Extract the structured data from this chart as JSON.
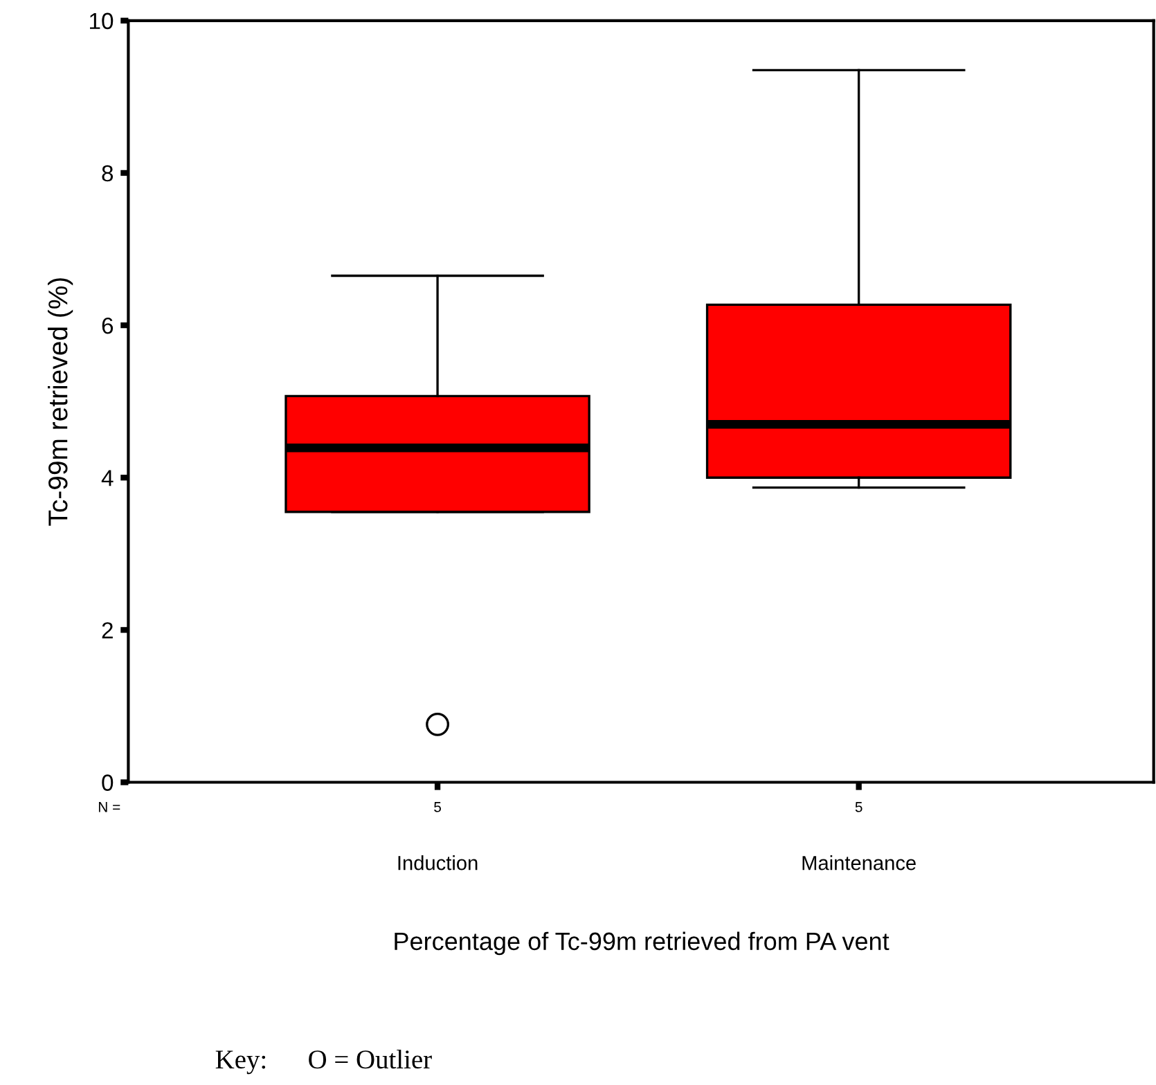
{
  "chart_data": {
    "type": "box",
    "categories": [
      "Induction",
      "Maintenance"
    ],
    "boxes": [
      {
        "low": 3.55,
        "q1": 3.55,
        "median": 4.39,
        "q3": 5.07,
        "high": 6.65,
        "outliers": [
          0.76
        ]
      },
      {
        "low": 3.87,
        "q1": 4.0,
        "median": 4.7,
        "q3": 6.27,
        "high": 9.35
      }
    ],
    "color": "#ff0000",
    "ylabel": "Tc-99m retrieved (%)",
    "xlabel": "Percentage of Tc-99m retrieved from PA vent",
    "ylim": [
      0,
      10
    ],
    "yticks": [
      0,
      2,
      4,
      6,
      8,
      10
    ],
    "grid": false,
    "legend": false,
    "annotations": [
      "N =",
      {
        "text": "5",
        "x": "Induction"
      },
      {
        "text": "5",
        "x": "Maintenance"
      },
      "Key:      O = Outlier"
    ]
  }
}
